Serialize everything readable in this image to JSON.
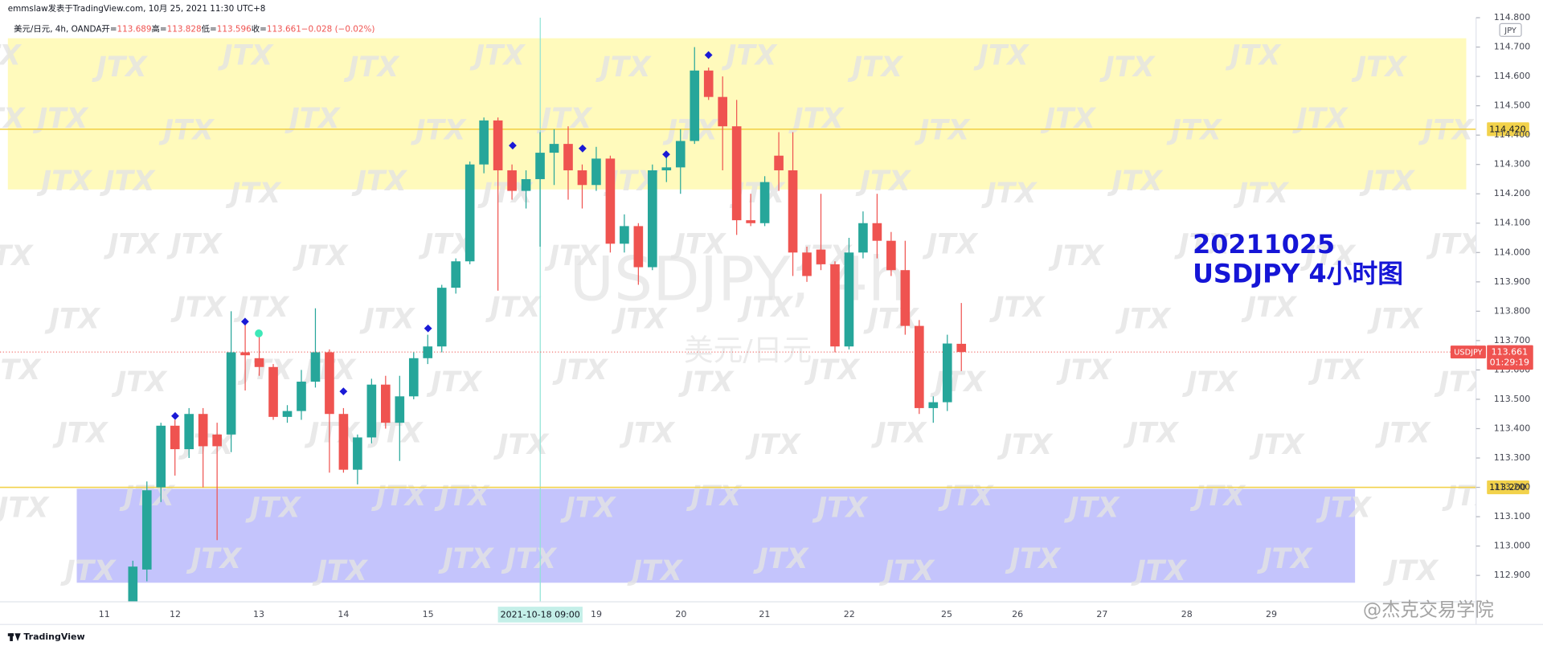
{
  "header": "emmslaw发表于TradingView.com, 10月 25, 2021 11:30 UTC+8",
  "legend": {
    "symbol": "美元/日元, 4h, OANDA",
    "open_label": "开=",
    "open": "113.689",
    "high_label": "高=",
    "high": "113.828",
    "low_label": "低=",
    "low": "113.596",
    "close_label": "收=",
    "close": "113.661",
    "change": "−0.028 (−0.02%)"
  },
  "footer": "TradingView",
  "credit": "@杰克交易学院",
  "chart_data": {
    "type": "candlestick",
    "watermark": "USDJPY, 4h",
    "watermark_sub": "美元/日元",
    "logo": "JTX",
    "annotations": [
      "20211025",
      "USDJPY 4小时图"
    ],
    "currency": "JPY",
    "symbol": "USDJPY",
    "up_color": "#26a69a",
    "down_color": "#ef5350",
    "open": [
      112.8,
      112.92,
      113.2,
      113.41,
      113.33,
      113.45,
      113.38,
      113.38,
      113.66,
      113.64,
      113.61,
      113.44,
      113.46,
      113.56,
      113.66,
      113.45,
      113.26,
      113.37,
      113.55,
      113.42,
      113.51,
      113.64,
      113.68,
      113.88,
      113.97,
      114.3,
      114.45,
      114.28,
      114.21,
      114.25,
      114.34,
      114.37,
      114.28,
      114.23,
      114.32,
      114.03,
      114.09,
      113.95,
      114.28,
      114.29,
      114.38,
      114.62,
      114.53,
      114.43,
      114.11,
      114.1,
      114.33,
      114.28,
      114.0,
      114.01,
      113.96,
      113.68,
      114.0,
      114.1,
      114.04,
      113.94,
      113.75,
      113.47,
      113.49,
      113.689
    ],
    "high": [
      112.95,
      113.22,
      113.42,
      113.43,
      113.47,
      113.47,
      113.42,
      113.8,
      113.76,
      113.72,
      113.62,
      113.48,
      113.6,
      113.81,
      113.67,
      113.47,
      113.38,
      113.57,
      113.58,
      113.58,
      113.66,
      113.72,
      113.89,
      113.98,
      114.31,
      114.46,
      114.46,
      114.3,
      114.28,
      114.41,
      114.42,
      114.43,
      114.3,
      114.36,
      114.33,
      114.13,
      114.1,
      114.3,
      114.34,
      114.42,
      114.7,
      114.63,
      114.6,
      114.52,
      114.2,
      114.26,
      114.41,
      114.41,
      114.02,
      114.2,
      113.97,
      114.05,
      114.14,
      114.2,
      114.07,
      114.04,
      113.77,
      113.51,
      113.72,
      113.828
    ],
    "low": [
      112.72,
      112.88,
      113.15,
      113.24,
      113.3,
      113.2,
      113.02,
      113.32,
      113.53,
      113.58,
      113.43,
      113.42,
      113.43,
      113.54,
      113.25,
      113.25,
      113.21,
      113.35,
      113.4,
      113.29,
      113.5,
      113.62,
      113.66,
      113.86,
      113.96,
      114.27,
      113.87,
      114.18,
      114.15,
      114.02,
      114.23,
      114.18,
      114.15,
      114.21,
      114.0,
      114.0,
      113.89,
      113.94,
      114.24,
      114.2,
      114.37,
      114.52,
      114.28,
      114.06,
      114.09,
      114.09,
      114.21,
      113.92,
      113.9,
      113.94,
      113.66,
      113.67,
      113.98,
      113.98,
      113.92,
      113.72,
      113.45,
      113.42,
      113.46,
      113.596
    ],
    "close": [
      112.93,
      113.19,
      113.41,
      113.33,
      113.45,
      113.34,
      113.34,
      113.66,
      113.65,
      113.61,
      113.44,
      113.46,
      113.56,
      113.66,
      113.45,
      113.26,
      113.37,
      113.55,
      113.42,
      113.51,
      113.64,
      113.68,
      113.88,
      113.97,
      114.3,
      114.45,
      114.28,
      114.21,
      114.25,
      114.34,
      114.37,
      114.28,
      114.23,
      114.32,
      114.03,
      114.09,
      113.95,
      114.28,
      114.29,
      114.38,
      114.62,
      114.53,
      114.43,
      114.11,
      114.1,
      114.24,
      114.28,
      114.0,
      113.92,
      113.96,
      113.68,
      114.0,
      114.1,
      114.04,
      113.94,
      113.75,
      113.47,
      113.49,
      113.69,
      113.661
    ],
    "ylim": [
      112.81,
      114.8
    ],
    "yticks": [
      {
        "value": 112.9,
        "label": "112.900"
      },
      {
        "value": 113.0,
        "label": "113.000"
      },
      {
        "value": 113.1,
        "label": "113.100"
      },
      {
        "value": 113.2,
        "label": "113.200"
      },
      {
        "value": 113.3,
        "label": "113.300"
      },
      {
        "value": 113.4,
        "label": "113.400"
      },
      {
        "value": 113.5,
        "label": "113.500"
      },
      {
        "value": 113.6,
        "label": "113.600"
      },
      {
        "value": 113.7,
        "label": "113.700"
      },
      {
        "value": 113.8,
        "label": "113.800"
      },
      {
        "value": 113.9,
        "label": "113.900"
      },
      {
        "value": 114.0,
        "label": "114.000"
      },
      {
        "value": 114.1,
        "label": "114.100"
      },
      {
        "value": 114.2,
        "label": "114.200"
      },
      {
        "value": 114.3,
        "label": "114.300"
      },
      {
        "value": 114.4,
        "label": "114.400"
      },
      {
        "value": 114.5,
        "label": "114.500"
      },
      {
        "value": 114.6,
        "label": "114.600"
      },
      {
        "value": 114.7,
        "label": "114.700"
      },
      {
        "value": 114.8,
        "label": "114.800"
      }
    ],
    "xticks": [
      "11",
      "12",
      "13",
      "14",
      "15",
      "19",
      "20",
      "21",
      "22",
      "25",
      "26",
      "27",
      "28",
      "29"
    ],
    "crosshair_label": "2021-10-18  09:00",
    "levels": [
      {
        "value": 114.42,
        "label": "114.420",
        "color": "#f2d24b"
      },
      {
        "value": 113.2,
        "label": "113.200",
        "color": "#f2d24b"
      }
    ],
    "zones": [
      {
        "top": 114.73,
        "bottom": 114.215,
        "color": "#fff9b0"
      },
      {
        "top": 113.195,
        "bottom": 112.875,
        "color": "#babafb"
      }
    ],
    "last_price": {
      "value": 113.661,
      "label": "113.661"
    },
    "countdown": "01:29:19"
  }
}
